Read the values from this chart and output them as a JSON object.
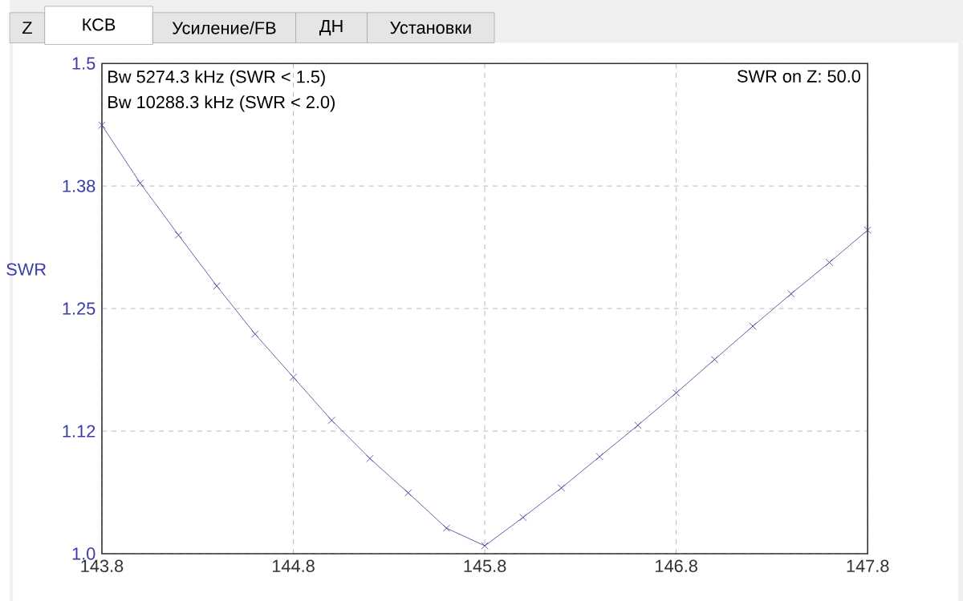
{
  "chart_data": {
    "type": "line",
    "ylabel": "SWR",
    "annotations": [
      "Z",
      "КСВ",
      "Усиление/FB",
      "ДН",
      "Установки",
      "Bw 5274.3 kHz (SWR < 1.5)",
      "Bw 10288.3 kHz (SWR < 2.0)",
      "SWR on Z: 50.0"
    ],
    "x": [
      143.8,
      144.0,
      144.2,
      144.4,
      144.6,
      144.8,
      145.0,
      145.2,
      145.4,
      145.6,
      145.8,
      146.0,
      146.2,
      146.4,
      146.6,
      146.8,
      147.0,
      147.2,
      147.4,
      147.6,
      147.8
    ],
    "values": [
      1.437,
      1.378,
      1.325,
      1.273,
      1.224,
      1.18,
      1.136,
      1.097,
      1.062,
      1.026,
      1.008,
      1.037,
      1.067,
      1.099,
      1.131,
      1.164,
      1.198,
      1.232,
      1.265,
      1.297,
      1.33
    ],
    "color": "#3c3c96",
    "marker": "cross",
    "line_style": "solid",
    "grid": true,
    "xlim": [
      143.8,
      147.8
    ],
    "xticks": [
      143.8,
      144.8,
      145.8,
      146.8,
      147.8
    ],
    "ylim": [
      1.0,
      1.5
    ],
    "yticks": [
      {
        "value": 1.0,
        "label": "1.0"
      },
      {
        "value": 1.125,
        "label": "1.12"
      },
      1.25,
      {
        "value": 1.375,
        "label": "1.38"
      },
      1.5
    ]
  }
}
